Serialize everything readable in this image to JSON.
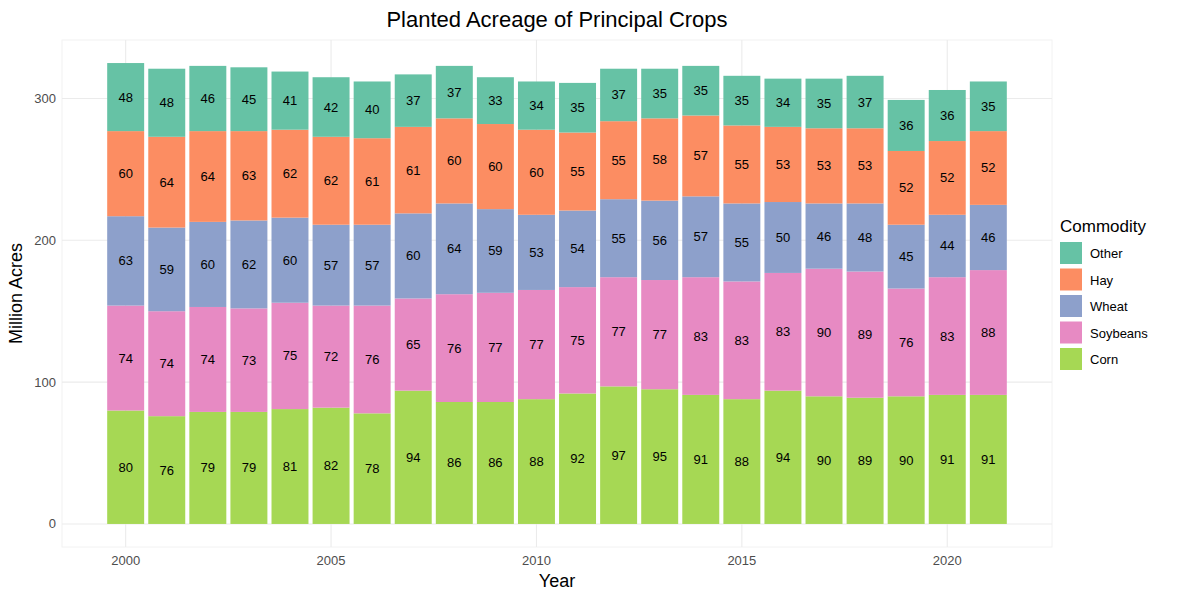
{
  "chart_data": {
    "type": "bar",
    "stacked": true,
    "data_labels": true,
    "grid": true,
    "legend": "right",
    "title": "Planted Acreage of Principal Crops",
    "x_label": "Year",
    "y_label": "Million Acres",
    "legend_title": "Commodity",
    "x": [
      2000,
      2001,
      2002,
      2003,
      2004,
      2005,
      2006,
      2007,
      2008,
      2009,
      2010,
      2011,
      2012,
      2013,
      2014,
      2015,
      2016,
      2017,
      2018,
      2019,
      2020,
      2021
    ],
    "xlim": [
      1998.45,
      2022.55
    ],
    "xticks": [
      2000,
      2005,
      2010,
      2015,
      2020
    ],
    "ylim": [
      -16.25,
      341.25
    ],
    "yticks": [
      0,
      100,
      200,
      300
    ],
    "series": [
      {
        "name": "Corn",
        "color": "#a6d854",
        "values": [
          80,
          76,
          79,
          79,
          81,
          82,
          78,
          94,
          86,
          86,
          88,
          92,
          97,
          95,
          91,
          88,
          94,
          90,
          89,
          90,
          91,
          91
        ]
      },
      {
        "name": "Soybeans",
        "color": "#e78ac3",
        "values": [
          74,
          74,
          74,
          73,
          75,
          72,
          76,
          65,
          76,
          77,
          77,
          75,
          77,
          77,
          83,
          83,
          83,
          90,
          89,
          76,
          83,
          88
        ]
      },
      {
        "name": "Wheat",
        "color": "#8da0cb",
        "values": [
          63,
          59,
          60,
          62,
          60,
          57,
          57,
          60,
          64,
          59,
          53,
          54,
          55,
          56,
          57,
          55,
          50,
          46,
          48,
          45,
          44,
          46
        ]
      },
      {
        "name": "Hay",
        "color": "#fc8d62",
        "values": [
          60,
          64,
          64,
          63,
          62,
          62,
          61,
          61,
          60,
          60,
          60,
          55,
          55,
          58,
          57,
          55,
          53,
          53,
          53,
          52,
          52,
          52
        ]
      },
      {
        "name": "Other",
        "color": "#66c2a5",
        "values": [
          48,
          48,
          46,
          45,
          41,
          42,
          40,
          37,
          37,
          33,
          34,
          35,
          37,
          35,
          35,
          35,
          34,
          35,
          37,
          36,
          36,
          35
        ]
      }
    ]
  }
}
